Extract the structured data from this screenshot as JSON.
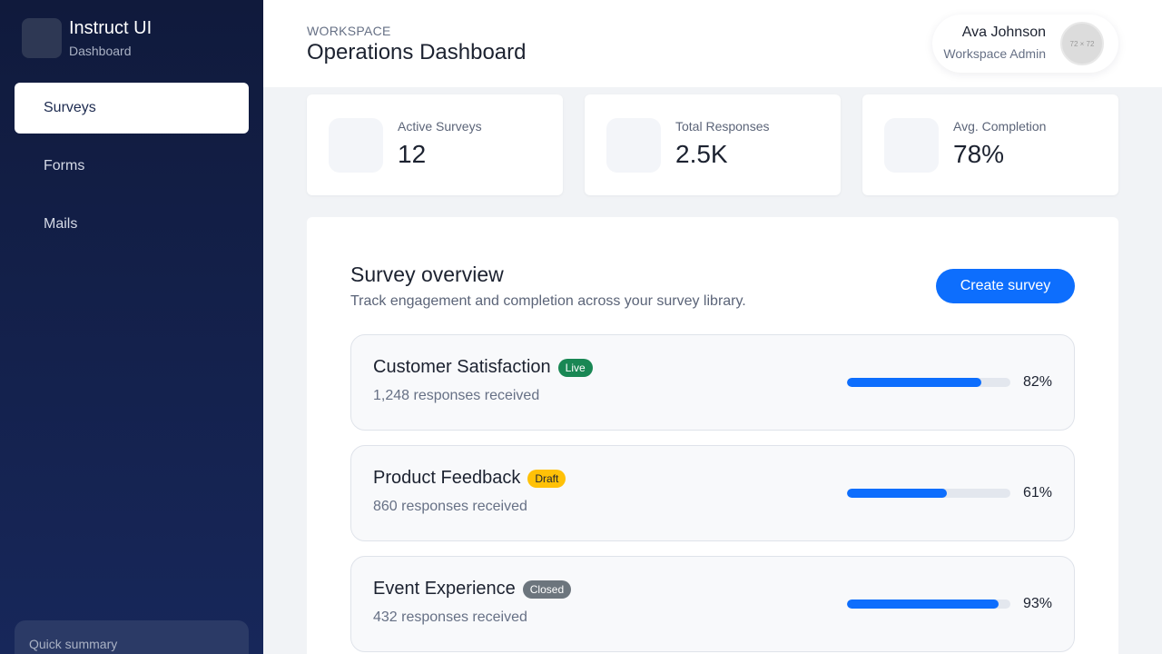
{
  "brand": {
    "name": "Instruct UI",
    "subtitle": "Dashboard"
  },
  "sidebar": {
    "items": [
      {
        "label": "Surveys",
        "active": true
      },
      {
        "label": "Forms",
        "active": false
      },
      {
        "label": "Mails",
        "active": false
      }
    ],
    "quick_summary": "Quick summary"
  },
  "header": {
    "workspace_label": "WORKSPACE",
    "title": "Operations Dashboard",
    "user": {
      "name": "Ava Johnson",
      "role": "Workspace Admin",
      "avatar_text": "72 × 72"
    }
  },
  "stats": [
    {
      "label": "Active Surveys",
      "value": "12"
    },
    {
      "label": "Total Responses",
      "value": "2.5K"
    },
    {
      "label": "Avg. Completion",
      "value": "78%"
    }
  ],
  "overview": {
    "title": "Survey overview",
    "subtitle": "Track engagement and completion across your survey library.",
    "create_label": "Create survey",
    "surveys": [
      {
        "name": "Customer Satisfaction",
        "status": "Live",
        "responses": "1,248 responses received",
        "completion": 82,
        "completion_label": "82%"
      },
      {
        "name": "Product Feedback",
        "status": "Draft",
        "responses": "860 responses received",
        "completion": 61,
        "completion_label": "61%"
      },
      {
        "name": "Event Experience",
        "status": "Closed",
        "responses": "432 responses received",
        "completion": 93,
        "completion_label": "93%"
      }
    ]
  },
  "colors": {
    "accent": "#0d6efd",
    "live": "#198754",
    "draft": "#ffc107",
    "closed": "#6c757d",
    "sidebar": "#101a3c"
  }
}
